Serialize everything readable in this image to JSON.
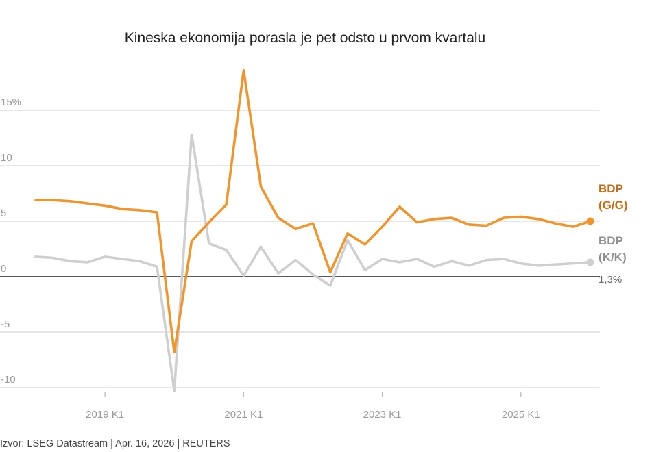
{
  "chart_data": {
    "type": "line",
    "title": "Kineska ekonomija porasla je pet odsto u prvom kvartalu",
    "source": "Izvor: LSEG Datastream | Apr. 16, 2026 | REUTERS",
    "x_labels": [
      "2019 K1",
      "2021 K1",
      "2023 K1",
      "2025 K1"
    ],
    "x_label_index": [
      4,
      12,
      20,
      28
    ],
    "y_ticks": [
      {
        "value": 15,
        "label": "15%"
      },
      {
        "value": 10,
        "label": "10"
      },
      {
        "value": 5,
        "label": "5"
      },
      {
        "value": 0,
        "label": "0"
      },
      {
        "value": -5,
        "label": "-5"
      },
      {
        "value": -10,
        "label": "-10"
      }
    ],
    "ylim": [
      -10.3,
      19
    ],
    "end_label": "1,3%",
    "series": [
      {
        "name_line1": "BDP",
        "name_line2": "(G/G)",
        "color": "#f0952e",
        "label_color": "#c76a12",
        "values": [
          6.9,
          6.9,
          6.8,
          6.6,
          6.4,
          6.1,
          6.0,
          5.8,
          -6.8,
          3.2,
          4.9,
          6.5,
          18.6,
          8.1,
          5.3,
          4.3,
          4.8,
          0.4,
          3.9,
          2.9,
          4.5,
          6.3,
          4.9,
          5.2,
          5.3,
          4.7,
          4.6,
          5.3,
          5.4,
          5.2,
          4.8,
          4.5,
          5.0
        ]
      },
      {
        "name_line1": "BDP",
        "name_line2": "(K/K)",
        "color": "#cfcfcf",
        "label_color": "#8f8f8f",
        "values": [
          1.8,
          1.7,
          1.4,
          1.3,
          1.8,
          1.6,
          1.4,
          0.9,
          -10.3,
          12.8,
          3.0,
          2.4,
          0.1,
          2.7,
          0.3,
          1.5,
          0.2,
          -0.8,
          3.3,
          0.6,
          1.6,
          1.3,
          1.6,
          0.9,
          1.4,
          1.0,
          1.5,
          1.6,
          1.2,
          1.0,
          1.1,
          1.2,
          1.3
        ]
      }
    ]
  }
}
